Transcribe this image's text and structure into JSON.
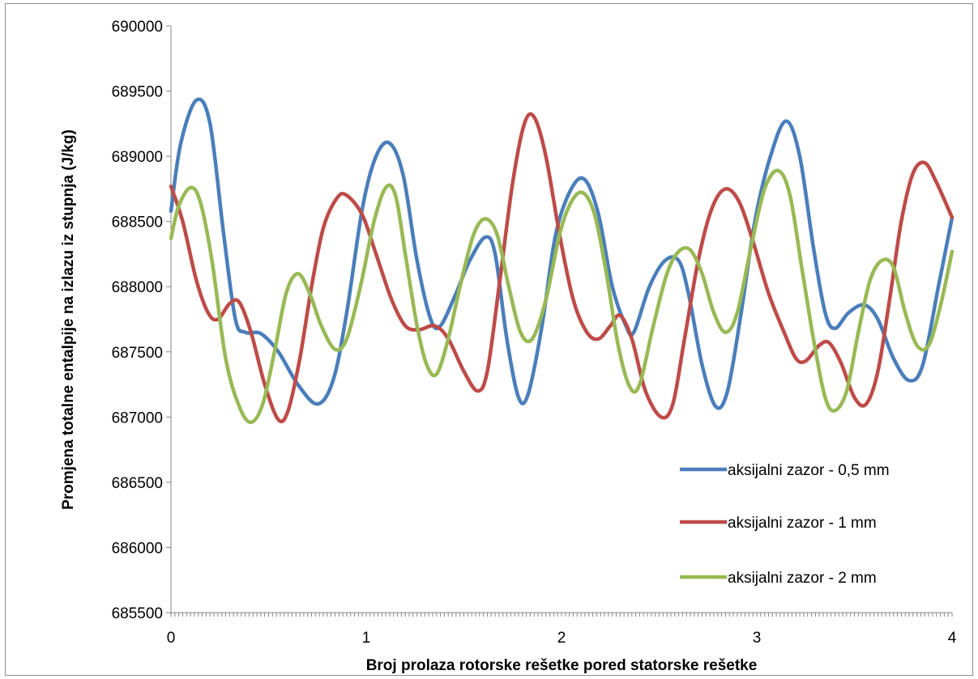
{
  "chart_data": {
    "type": "line",
    "title": "",
    "xlabel": "Broj prolaza rotorske rešetke pored statorske rešetke",
    "ylabel": "Promjena totalne entalpije na izlazu iz stupnja (J/kg)",
    "xlim": [
      0,
      4
    ],
    "ylim": [
      685500,
      690000
    ],
    "x_ticks": [
      "0",
      "1",
      "2",
      "3",
      "4"
    ],
    "y_ticks": [
      "685500",
      "686000",
      "686500",
      "687000",
      "687500",
      "688000",
      "688500",
      "689000",
      "689500",
      "690000"
    ],
    "grid": false,
    "legend_position": "right",
    "series": [
      {
        "name": "aksijalni zazor - 0,5 mm",
        "color": "#4a7ebb",
        "points": [
          [
            0,
            688580
          ],
          [
            0.05,
            689100
          ],
          [
            0.13,
            689430
          ],
          [
            0.2,
            689250
          ],
          [
            0.27,
            688400
          ],
          [
            0.33,
            687750
          ],
          [
            0.38,
            687650
          ],
          [
            0.46,
            687640
          ],
          [
            0.55,
            687500
          ],
          [
            0.65,
            687250
          ],
          [
            0.75,
            687100
          ],
          [
            0.83,
            687280
          ],
          [
            0.9,
            687800
          ],
          [
            0.98,
            688600
          ],
          [
            1.05,
            689000
          ],
          [
            1.12,
            689100
          ],
          [
            1.19,
            688850
          ],
          [
            1.26,
            688200
          ],
          [
            1.33,
            687750
          ],
          [
            1.38,
            687700
          ],
          [
            1.46,
            687950
          ],
          [
            1.53,
            688200
          ],
          [
            1.61,
            688380
          ],
          [
            1.66,
            688250
          ],
          [
            1.72,
            687600
          ],
          [
            1.78,
            687150
          ],
          [
            1.83,
            687180
          ],
          [
            1.9,
            687700
          ],
          [
            1.97,
            688400
          ],
          [
            2.05,
            688750
          ],
          [
            2.12,
            688820
          ],
          [
            2.19,
            688550
          ],
          [
            2.26,
            688000
          ],
          [
            2.33,
            687700
          ],
          [
            2.37,
            687650
          ],
          [
            2.45,
            688000
          ],
          [
            2.53,
            688200
          ],
          [
            2.6,
            688200
          ],
          [
            2.65,
            687950
          ],
          [
            2.72,
            687400
          ],
          [
            2.79,
            687080
          ],
          [
            2.85,
            687200
          ],
          [
            2.92,
            687800
          ],
          [
            2.99,
            688500
          ],
          [
            3.07,
            689000
          ],
          [
            3.15,
            689270
          ],
          [
            3.22,
            689000
          ],
          [
            3.29,
            688300
          ],
          [
            3.35,
            687800
          ],
          [
            3.4,
            687680
          ],
          [
            3.47,
            687800
          ],
          [
            3.55,
            687860
          ],
          [
            3.62,
            687750
          ],
          [
            3.7,
            687450
          ],
          [
            3.78,
            687280
          ],
          [
            3.85,
            687400
          ],
          [
            3.93,
            688000
          ],
          [
            4,
            688530
          ]
        ]
      },
      {
        "name": "aksijalni zazor - 1 mm",
        "color": "#be4b48",
        "points": [
          [
            0,
            688770
          ],
          [
            0.06,
            688500
          ],
          [
            0.13,
            688050
          ],
          [
            0.19,
            687800
          ],
          [
            0.24,
            687750
          ],
          [
            0.3,
            687870
          ],
          [
            0.35,
            687880
          ],
          [
            0.41,
            687650
          ],
          [
            0.48,
            687250
          ],
          [
            0.55,
            686980
          ],
          [
            0.6,
            687050
          ],
          [
            0.66,
            687450
          ],
          [
            0.72,
            688000
          ],
          [
            0.78,
            688450
          ],
          [
            0.85,
            688680
          ],
          [
            0.9,
            688700
          ],
          [
            0.98,
            688550
          ],
          [
            1.05,
            688250
          ],
          [
            1.13,
            687900
          ],
          [
            1.2,
            687700
          ],
          [
            1.27,
            687670
          ],
          [
            1.35,
            687700
          ],
          [
            1.42,
            687600
          ],
          [
            1.5,
            687350
          ],
          [
            1.57,
            687200
          ],
          [
            1.62,
            687350
          ],
          [
            1.68,
            688000
          ],
          [
            1.75,
            688800
          ],
          [
            1.81,
            689250
          ],
          [
            1.86,
            689300
          ],
          [
            1.92,
            689000
          ],
          [
            1.99,
            688400
          ],
          [
            2.06,
            687900
          ],
          [
            2.13,
            687650
          ],
          [
            2.19,
            687600
          ],
          [
            2.25,
            687700
          ],
          [
            2.3,
            687780
          ],
          [
            2.36,
            687600
          ],
          [
            2.43,
            687200
          ],
          [
            2.51,
            687000
          ],
          [
            2.57,
            687100
          ],
          [
            2.63,
            687600
          ],
          [
            2.7,
            688200
          ],
          [
            2.77,
            688600
          ],
          [
            2.84,
            688750
          ],
          [
            2.91,
            688650
          ],
          [
            2.98,
            688350
          ],
          [
            3.06,
            687950
          ],
          [
            3.14,
            687650
          ],
          [
            3.2,
            687450
          ],
          [
            3.25,
            687430
          ],
          [
            3.32,
            687550
          ],
          [
            3.37,
            687570
          ],
          [
            3.43,
            687420
          ],
          [
            3.5,
            687150
          ],
          [
            3.56,
            687100
          ],
          [
            3.62,
            687350
          ],
          [
            3.68,
            687900
          ],
          [
            3.74,
            688500
          ],
          [
            3.8,
            688870
          ],
          [
            3.86,
            688950
          ],
          [
            3.92,
            688800
          ],
          [
            4,
            688530
          ]
        ]
      },
      {
        "name": "aksijalni zazor - 2 mm",
        "color": "#98b954",
        "points": [
          [
            0,
            688370
          ],
          [
            0.04,
            688620
          ],
          [
            0.1,
            688760
          ],
          [
            0.15,
            688650
          ],
          [
            0.21,
            688200
          ],
          [
            0.28,
            687450
          ],
          [
            0.35,
            687080
          ],
          [
            0.41,
            686960
          ],
          [
            0.47,
            687100
          ],
          [
            0.53,
            687500
          ],
          [
            0.59,
            687950
          ],
          [
            0.65,
            688100
          ],
          [
            0.71,
            687950
          ],
          [
            0.77,
            687700
          ],
          [
            0.84,
            687520
          ],
          [
            0.9,
            687600
          ],
          [
            0.97,
            688000
          ],
          [
            1.04,
            688500
          ],
          [
            1.1,
            688760
          ],
          [
            1.15,
            688700
          ],
          [
            1.2,
            688250
          ],
          [
            1.26,
            687700
          ],
          [
            1.31,
            687400
          ],
          [
            1.36,
            687330
          ],
          [
            1.42,
            687600
          ],
          [
            1.48,
            688000
          ],
          [
            1.55,
            688400
          ],
          [
            1.61,
            688520
          ],
          [
            1.67,
            688400
          ],
          [
            1.73,
            688000
          ],
          [
            1.79,
            687650
          ],
          [
            1.85,
            687600
          ],
          [
            1.92,
            687900
          ],
          [
            1.99,
            688400
          ],
          [
            2.05,
            688650
          ],
          [
            2.11,
            688720
          ],
          [
            2.17,
            688550
          ],
          [
            2.23,
            688100
          ],
          [
            2.29,
            687550
          ],
          [
            2.35,
            687230
          ],
          [
            2.4,
            687250
          ],
          [
            2.47,
            687700
          ],
          [
            2.54,
            688100
          ],
          [
            2.6,
            688270
          ],
          [
            2.66,
            688280
          ],
          [
            2.72,
            688100
          ],
          [
            2.78,
            687800
          ],
          [
            2.84,
            687650
          ],
          [
            2.9,
            687800
          ],
          [
            2.97,
            688300
          ],
          [
            3.04,
            688750
          ],
          [
            3.11,
            688890
          ],
          [
            3.17,
            688700
          ],
          [
            3.23,
            688150
          ],
          [
            3.29,
            687600
          ],
          [
            3.35,
            687150
          ],
          [
            3.4,
            687050
          ],
          [
            3.46,
            687200
          ],
          [
            3.52,
            687650
          ],
          [
            3.58,
            688050
          ],
          [
            3.64,
            688200
          ],
          [
            3.7,
            688150
          ],
          [
            3.76,
            687800
          ],
          [
            3.82,
            687550
          ],
          [
            3.88,
            687550
          ],
          [
            3.94,
            687850
          ],
          [
            4,
            688270
          ]
        ]
      }
    ]
  }
}
